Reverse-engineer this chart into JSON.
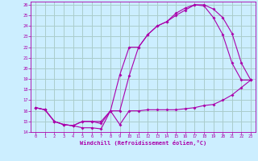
{
  "xlabel": "Windchill (Refroidissement éolien,°C)",
  "bg_color": "#cceeff",
  "line_color": "#aa00aa",
  "grid_color": "#aacccc",
  "xlim": [
    -0.5,
    23.5
  ],
  "ylim": [
    14,
    26.3
  ],
  "xticks": [
    0,
    1,
    2,
    3,
    4,
    5,
    6,
    7,
    8,
    9,
    10,
    11,
    12,
    13,
    14,
    15,
    16,
    17,
    18,
    19,
    20,
    21,
    22,
    23
  ],
  "yticks": [
    14,
    15,
    16,
    17,
    18,
    19,
    20,
    21,
    22,
    23,
    24,
    25,
    26
  ],
  "line1_x": [
    0,
    1,
    2,
    3,
    4,
    5,
    6,
    7,
    8,
    9,
    10,
    11,
    12,
    13,
    14,
    15,
    16,
    17,
    18,
    19,
    20,
    21,
    22,
    23
  ],
  "line1_y": [
    16.3,
    16.1,
    15.0,
    14.7,
    14.6,
    14.4,
    14.4,
    14.3,
    16.0,
    14.7,
    16.0,
    16.0,
    16.1,
    16.1,
    16.1,
    16.1,
    16.2,
    16.3,
    16.5,
    16.6,
    17.0,
    17.5,
    18.2,
    18.9
  ],
  "line2_x": [
    0,
    1,
    2,
    3,
    4,
    5,
    6,
    7,
    8,
    9,
    10,
    11,
    12,
    13,
    14,
    15,
    16,
    17,
    18,
    19,
    20,
    21,
    22,
    23
  ],
  "line2_y": [
    16.3,
    16.1,
    15.0,
    14.7,
    14.6,
    15.0,
    15.0,
    14.8,
    16.0,
    16.0,
    19.3,
    22.0,
    23.2,
    24.0,
    24.4,
    25.2,
    25.7,
    26.0,
    26.0,
    25.6,
    24.8,
    23.3,
    20.5,
    18.9
  ],
  "line3_x": [
    0,
    1,
    2,
    3,
    4,
    5,
    6,
    7,
    8,
    9,
    10,
    11,
    12,
    13,
    14,
    15,
    16,
    17,
    18,
    19,
    20,
    21,
    22,
    23
  ],
  "line3_y": [
    16.3,
    16.1,
    15.0,
    14.7,
    14.6,
    15.0,
    15.0,
    15.0,
    16.0,
    19.4,
    22.0,
    22.0,
    23.2,
    24.0,
    24.4,
    25.0,
    25.5,
    26.0,
    25.9,
    24.8,
    23.2,
    20.5,
    18.9,
    18.9
  ]
}
